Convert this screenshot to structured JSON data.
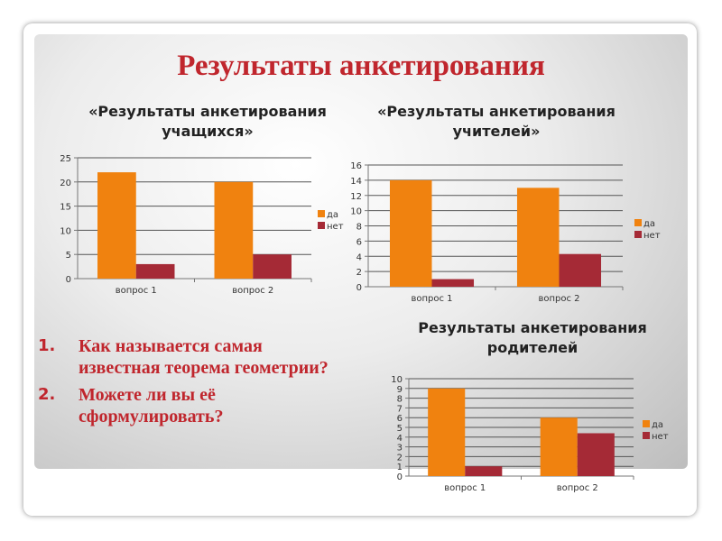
{
  "title": "Результаты анкетирования",
  "questions": [
    {
      "num": "1.",
      "text": "Как называется самая известная теорема геометрии?"
    },
    {
      "num": "2.",
      "text": "Можете ли вы её сформулировать?"
    }
  ],
  "colors": {
    "da": "#f0820f",
    "net": "#a52a36",
    "title": "#c0262d"
  },
  "chart_data": [
    {
      "type": "bar",
      "title": "«Результаты анкетирования учащихся»",
      "categories": [
        "вопрос 1",
        "вопрос 2"
      ],
      "ylim": [
        0,
        25
      ],
      "yticks": [
        0,
        5,
        10,
        15,
        20,
        25
      ],
      "legend": "right",
      "grid": true,
      "series": [
        {
          "name": "да",
          "values": [
            22,
            20
          ]
        },
        {
          "name": "нет",
          "values": [
            3,
            5
          ]
        }
      ]
    },
    {
      "type": "bar",
      "title": "«Результаты анкетирования учителей»",
      "categories": [
        "вопрос 1",
        "вопрос 2"
      ],
      "ylim": [
        0,
        16
      ],
      "yticks": [
        0,
        2,
        4,
        6,
        8,
        10,
        12,
        14,
        16
      ],
      "legend": "right",
      "grid": true,
      "series": [
        {
          "name": "да",
          "values": [
            14,
            13
          ]
        },
        {
          "name": "нет",
          "values": [
            1,
            4.3
          ]
        }
      ]
    },
    {
      "type": "bar",
      "title": "Результаты анкетирования родителей",
      "categories": [
        "вопрос 1",
        "вопрос 2"
      ],
      "ylim": [
        0,
        10
      ],
      "yticks": [
        0,
        1,
        2,
        3,
        4,
        5,
        6,
        7,
        8,
        9,
        10
      ],
      "legend": "right",
      "grid": true,
      "series": [
        {
          "name": "да",
          "values": [
            9,
            6
          ]
        },
        {
          "name": "нет",
          "values": [
            1,
            4.4
          ]
        }
      ]
    }
  ]
}
